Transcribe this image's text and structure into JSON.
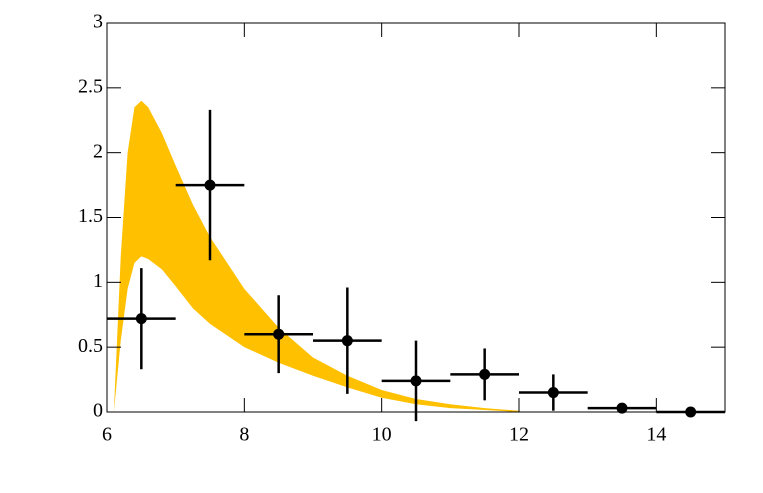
{
  "chart_data": {
    "type": "scatter",
    "xlim": [
      6,
      15
    ],
    "ylim": [
      0,
      3
    ],
    "xticks": [
      6,
      8,
      10,
      12,
      14
    ],
    "yticks": [
      0,
      0.5,
      1,
      1.5,
      2,
      2.5,
      3
    ],
    "band": {
      "color": "#ffc000",
      "x": [
        6.1,
        6.2,
        6.3,
        6.4,
        6.5,
        6.6,
        6.8,
        7.0,
        7.25,
        7.5,
        8,
        8.5,
        9,
        9.5,
        10,
        10.5,
        11,
        11.5,
        12
      ],
      "lower": [
        0,
        0.55,
        0.95,
        1.15,
        1.2,
        1.18,
        1.1,
        0.97,
        0.8,
        0.68,
        0.5,
        0.38,
        0.28,
        0.19,
        0.11,
        0.06,
        0.03,
        0.015,
        0
      ],
      "upper": [
        0,
        1.2,
        2.0,
        2.35,
        2.4,
        2.35,
        2.15,
        1.9,
        1.6,
        1.35,
        0.95,
        0.65,
        0.42,
        0.28,
        0.17,
        0.1,
        0.06,
        0.03,
        0.01
      ]
    },
    "series": [
      {
        "color": "#000000",
        "x": [
          6.5,
          7.5,
          8.5,
          9.5,
          10.5,
          11.5,
          12.5,
          13.5,
          14.5
        ],
        "values": [
          0.72,
          1.75,
          0.6,
          0.55,
          0.24,
          0.29,
          0.15,
          0.03,
          0.0
        ],
        "xerr": [
          0.5,
          0.5,
          0.5,
          0.5,
          0.5,
          0.5,
          0.5,
          0.5,
          0.5
        ],
        "yerr": [
          0.39,
          0.58,
          0.3,
          0.41,
          0.31,
          0.2,
          0.14,
          0.01,
          0.0
        ]
      }
    ]
  }
}
